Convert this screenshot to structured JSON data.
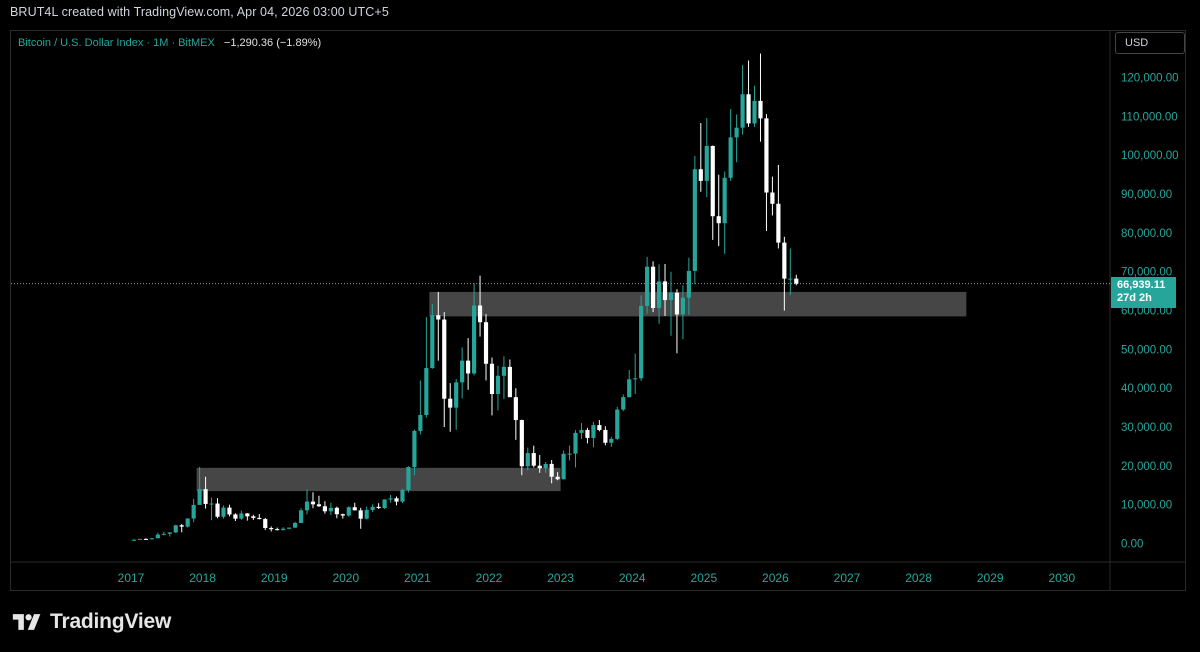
{
  "header": {
    "credit": "BRUT4L created with TradingView.com, Apr 04, 2026 03:00 UTC+5"
  },
  "legend": {
    "symbol": "Bitcoin / U.S. Dollar Index · 1M · BitMEX",
    "change": "−1,290.36 (−1.89%)"
  },
  "currency": "USD",
  "price_tag": {
    "price": "66,939.11",
    "countdown": "27d 2h"
  },
  "brand": {
    "name": "TradingView"
  },
  "colors": {
    "up": "#26a69a",
    "down": "#ffffff",
    "zone": "#4a4a4a",
    "axis_text": "#26a69a"
  },
  "chart_data": {
    "type": "candlestick",
    "title": "",
    "y_ticks": [
      "0.00",
      "10,000.00",
      "20,000.00",
      "30,000.00",
      "40,000.00",
      "50,000.00",
      "60,000.00",
      "70,000.00",
      "80,000.00",
      "90,000.00",
      "100,000.00",
      "110,000.00",
      "120,000.00"
    ],
    "y_tick_values": [
      0,
      10000,
      20000,
      30000,
      40000,
      50000,
      60000,
      70000,
      80000,
      90000,
      100000,
      110000,
      120000
    ],
    "x_ticks": [
      "2017",
      "2018",
      "2019",
      "2020",
      "2021",
      "2022",
      "2023",
      "2024",
      "2025",
      "2026",
      "2027",
      "2028",
      "2029",
      "2030"
    ],
    "ylim": [
      -4500,
      132000
    ],
    "last_price": 66939.11,
    "zones": [
      {
        "from": "2017-12",
        "to": "2022-12",
        "low": 13500,
        "high": 19500
      },
      {
        "from": "2021-03",
        "to": "2028-08",
        "low": 58500,
        "high": 64800
      }
    ],
    "ohlc": [
      [
        "2017-01",
        960,
        1150,
        750,
        970
      ],
      [
        "2017-02",
        970,
        1200,
        920,
        1190
      ],
      [
        "2017-03",
        1190,
        1350,
        890,
        1080
      ],
      [
        "2017-04",
        1080,
        1400,
        1060,
        1350
      ],
      [
        "2017-05",
        1350,
        2800,
        1350,
        2300
      ],
      [
        "2017-06",
        2300,
        3000,
        2100,
        2500
      ],
      [
        "2017-07",
        2500,
        2900,
        1800,
        2870
      ],
      [
        "2017-08",
        2870,
        4800,
        2700,
        4700
      ],
      [
        "2017-09",
        4700,
        5000,
        2900,
        4350
      ],
      [
        "2017-10",
        4350,
        6500,
        4100,
        6450
      ],
      [
        "2017-11",
        6450,
        11500,
        5500,
        9950
      ],
      [
        "2017-12",
        9950,
        19700,
        10800,
        14000
      ],
      [
        "2018-01",
        14000,
        17200,
        9000,
        10200
      ],
      [
        "2018-02",
        10200,
        11800,
        6000,
        10300
      ],
      [
        "2018-03",
        10300,
        11700,
        6500,
        6900
      ],
      [
        "2018-04",
        6900,
        9800,
        6400,
        9250
      ],
      [
        "2018-05",
        9250,
        10000,
        7000,
        7500
      ],
      [
        "2018-06",
        7500,
        7800,
        5800,
        6400
      ],
      [
        "2018-07",
        6400,
        8500,
        6100,
        7750
      ],
      [
        "2018-08",
        7750,
        7850,
        5900,
        7000
      ],
      [
        "2018-09",
        7000,
        7400,
        6100,
        6600
      ],
      [
        "2018-10",
        6600,
        7600,
        6200,
        6300
      ],
      [
        "2018-11",
        6300,
        6600,
        3500,
        4000
      ],
      [
        "2018-12",
        4000,
        4400,
        3100,
        3700
      ],
      [
        "2019-01",
        3700,
        4100,
        3350,
        3450
      ],
      [
        "2019-02",
        3450,
        4200,
        3400,
        3800
      ],
      [
        "2019-03",
        3800,
        4100,
        3700,
        4100
      ],
      [
        "2019-04",
        4100,
        5600,
        4000,
        5300
      ],
      [
        "2019-05",
        5300,
        9100,
        5300,
        8550
      ],
      [
        "2019-06",
        8550,
        13900,
        7500,
        10800
      ],
      [
        "2019-07",
        10800,
        13200,
        9100,
        10100
      ],
      [
        "2019-08",
        10100,
        12300,
        9400,
        9600
      ],
      [
        "2019-09",
        9600,
        10900,
        7700,
        8300
      ],
      [
        "2019-10",
        8300,
        10500,
        7300,
        9200
      ],
      [
        "2019-11",
        9200,
        9500,
        6500,
        7550
      ],
      [
        "2019-12",
        7550,
        7700,
        6400,
        7200
      ],
      [
        "2020-01",
        7200,
        9600,
        6900,
        9350
      ],
      [
        "2020-02",
        9350,
        10500,
        8500,
        8550
      ],
      [
        "2020-03",
        8550,
        9200,
        3800,
        6400
      ],
      [
        "2020-04",
        6400,
        9500,
        6200,
        8650
      ],
      [
        "2020-05",
        8650,
        10100,
        8100,
        9450
      ],
      [
        "2020-06",
        9450,
        10400,
        8900,
        9150
      ],
      [
        "2020-07",
        9150,
        11400,
        8900,
        11350
      ],
      [
        "2020-08",
        11350,
        12500,
        10500,
        11650
      ],
      [
        "2020-09",
        11650,
        12100,
        9850,
        10800
      ],
      [
        "2020-10",
        10800,
        14100,
        10400,
        13800
      ],
      [
        "2020-11",
        13800,
        19900,
        13200,
        19700
      ],
      [
        "2020-12",
        19700,
        29300,
        17600,
        29000
      ],
      [
        "2021-01",
        29000,
        42000,
        28100,
        33100
      ],
      [
        "2021-02",
        33100,
        58300,
        32400,
        45200
      ],
      [
        "2021-03",
        45200,
        61700,
        45000,
        58800
      ],
      [
        "2021-04",
        58800,
        64800,
        47100,
        57700
      ],
      [
        "2021-05",
        57700,
        59600,
        30000,
        37300
      ],
      [
        "2021-06",
        37300,
        41300,
        28800,
        35000
      ],
      [
        "2021-07",
        35000,
        42400,
        29300,
        41500
      ],
      [
        "2021-08",
        41500,
        50500,
        37400,
        47100
      ],
      [
        "2021-09",
        47100,
        52900,
        39600,
        43800
      ],
      [
        "2021-10",
        43800,
        67000,
        43300,
        61300
      ],
      [
        "2021-11",
        61300,
        69000,
        53300,
        57000
      ],
      [
        "2021-12",
        57000,
        59100,
        42000,
        46300
      ],
      [
        "2022-01",
        46300,
        47900,
        33000,
        38500
      ],
      [
        "2022-02",
        38500,
        45800,
        34300,
        43200
      ],
      [
        "2022-03",
        43200,
        48200,
        37200,
        45500
      ],
      [
        "2022-04",
        45500,
        47400,
        37700,
        37700
      ],
      [
        "2022-05",
        37700,
        40000,
        26700,
        31800
      ],
      [
        "2022-06",
        31800,
        31900,
        17600,
        19900
      ],
      [
        "2022-07",
        19900,
        24700,
        18800,
        23300
      ],
      [
        "2022-08",
        23300,
        25200,
        19600,
        20050
      ],
      [
        "2022-09",
        20050,
        22800,
        18200,
        19400
      ],
      [
        "2022-10",
        19400,
        21000,
        18200,
        20500
      ],
      [
        "2022-11",
        20500,
        21500,
        15500,
        17200
      ],
      [
        "2022-12",
        17200,
        18400,
        16300,
        16550
      ],
      [
        "2023-01",
        16550,
        23950,
        16500,
        23100
      ],
      [
        "2023-02",
        23100,
        25250,
        21400,
        23150
      ],
      [
        "2023-03",
        23150,
        29200,
        19600,
        28500
      ],
      [
        "2023-04",
        28500,
        31000,
        26900,
        29250
      ],
      [
        "2023-05",
        29250,
        29800,
        25800,
        27200
      ],
      [
        "2023-06",
        27200,
        31400,
        24800,
        30500
      ],
      [
        "2023-07",
        30500,
        31800,
        28900,
        29250
      ],
      [
        "2023-08",
        29250,
        30200,
        25300,
        25950
      ],
      [
        "2023-09",
        25950,
        27500,
        24900,
        26950
      ],
      [
        "2023-10",
        26950,
        35200,
        26600,
        34500
      ],
      [
        "2023-11",
        34500,
        38400,
        34100,
        37700
      ],
      [
        "2023-12",
        37700,
        44700,
        37600,
        42300
      ],
      [
        "2024-01",
        42300,
        48900,
        38500,
        42550
      ],
      [
        "2024-02",
        42550,
        63900,
        41900,
        61200
      ],
      [
        "2024-03",
        61200,
        73800,
        59200,
        71300
      ],
      [
        "2024-04",
        71300,
        72700,
        59600,
        60650
      ],
      [
        "2024-05",
        60650,
        71900,
        56600,
        67500
      ],
      [
        "2024-06",
        67500,
        72000,
        58600,
        62700
      ],
      [
        "2024-07",
        62700,
        70000,
        53500,
        64600
      ],
      [
        "2024-08",
        64600,
        65500,
        49000,
        59000
      ],
      [
        "2024-09",
        59000,
        66500,
        52600,
        63300
      ],
      [
        "2024-10",
        63300,
        73600,
        58900,
        70200
      ],
      [
        "2024-11",
        70200,
        99800,
        66800,
        96400
      ],
      [
        "2024-12",
        96400,
        108300,
        90600,
        93400
      ],
      [
        "2025-01",
        93400,
        109600,
        89200,
        102400
      ],
      [
        "2025-02",
        102400,
        102500,
        78200,
        84300
      ],
      [
        "2025-03",
        84300,
        95000,
        76600,
        82500
      ],
      [
        "2025-04",
        82500,
        95800,
        74600,
        94200
      ],
      [
        "2025-05",
        94200,
        111900,
        93400,
        104600
      ],
      [
        "2025-06",
        104600,
        110500,
        98200,
        107100
      ],
      [
        "2025-07",
        107100,
        123200,
        105300,
        115700
      ],
      [
        "2025-08",
        115700,
        124400,
        107300,
        108200
      ],
      [
        "2025-09",
        108200,
        117900,
        107300,
        114000
      ],
      [
        "2025-10",
        114000,
        126200,
        103500,
        109500
      ],
      [
        "2025-11",
        109500,
        110600,
        80500,
        90400
      ],
      [
        "2025-12",
        90400,
        94500,
        84500,
        87500
      ],
      [
        "2026-01",
        87500,
        97500,
        76000,
        77500
      ],
      [
        "2026-02",
        77500,
        79000,
        60000,
        68229
      ],
      [
        "2026-03",
        68229,
        76000,
        64000,
        68229
      ],
      [
        "2026-04",
        68229,
        69200,
        66500,
        66939
      ]
    ]
  }
}
